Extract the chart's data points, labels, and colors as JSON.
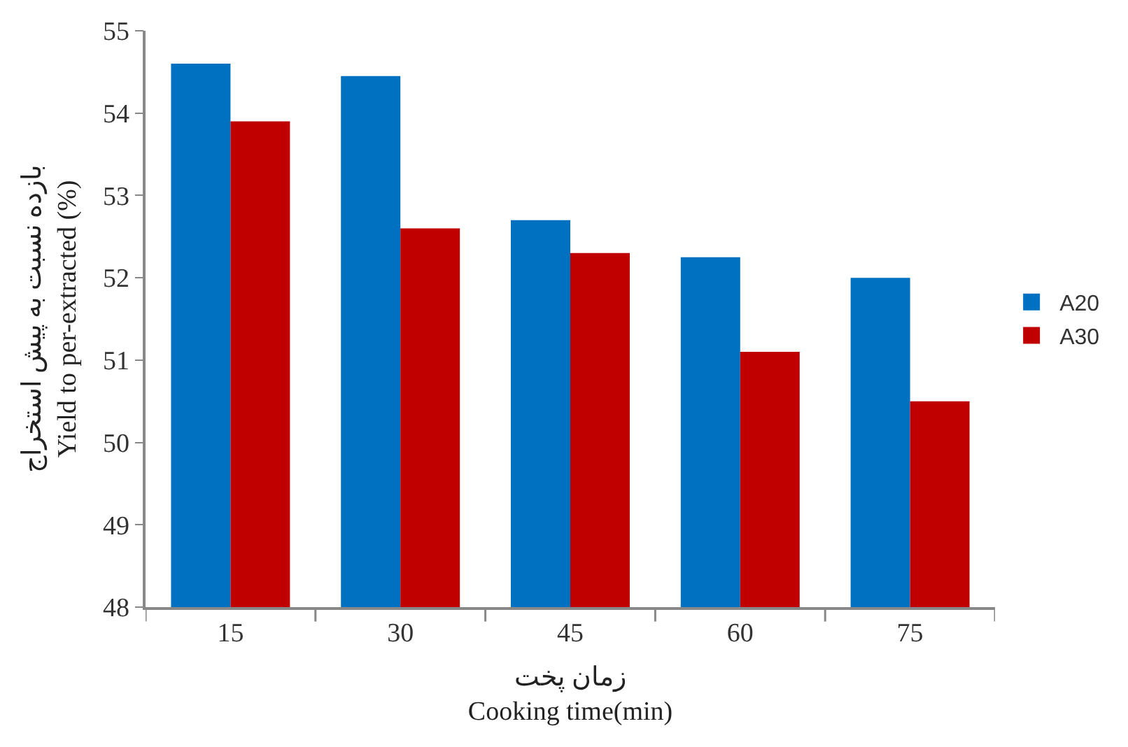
{
  "chart_data": {
    "type": "bar",
    "categories": [
      "15",
      "30",
      "45",
      "60",
      "75"
    ],
    "series": [
      {
        "name": "A20",
        "color": "#0070c0",
        "values": [
          54.6,
          54.45,
          52.7,
          52.25,
          52.0
        ]
      },
      {
        "name": "A30",
        "color": "#c00000",
        "values": [
          53.9,
          52.6,
          52.3,
          51.1,
          50.5
        ]
      }
    ],
    "xlabel": "زمان پخت\nCooking time(min)",
    "ylabel": "بازده نسبت به پیش استخراج\nYield to per-extracted (%)",
    "ylim": [
      48,
      55
    ],
    "yticks": [
      48,
      49,
      50,
      51,
      52,
      53,
      54,
      55
    ],
    "legend": "right"
  }
}
